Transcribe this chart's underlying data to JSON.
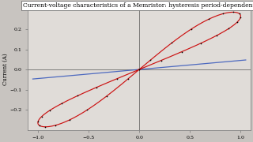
{
  "title": "Current-voltage characteristics of a Memristor: hysteresis period-dependent",
  "ylabel": "Current (A)",
  "xlim": [
    -1.1,
    1.1
  ],
  "ylim": [
    -0.3,
    0.3
  ],
  "yticks": [
    -0.2,
    -0.1,
    0.0,
    0.1,
    0.2
  ],
  "xticks": [
    -1.0,
    -0.5,
    0.0,
    0.5,
    1.0
  ],
  "bg_color": "#c8c4c0",
  "plot_bg": "#e0dcd8",
  "red_color": "#cc1111",
  "blue_color": "#3355bb",
  "dot_color": "#000000",
  "title_fontsize": 5.5,
  "axis_fontsize": 5.0,
  "tick_fontsize": 4.5
}
